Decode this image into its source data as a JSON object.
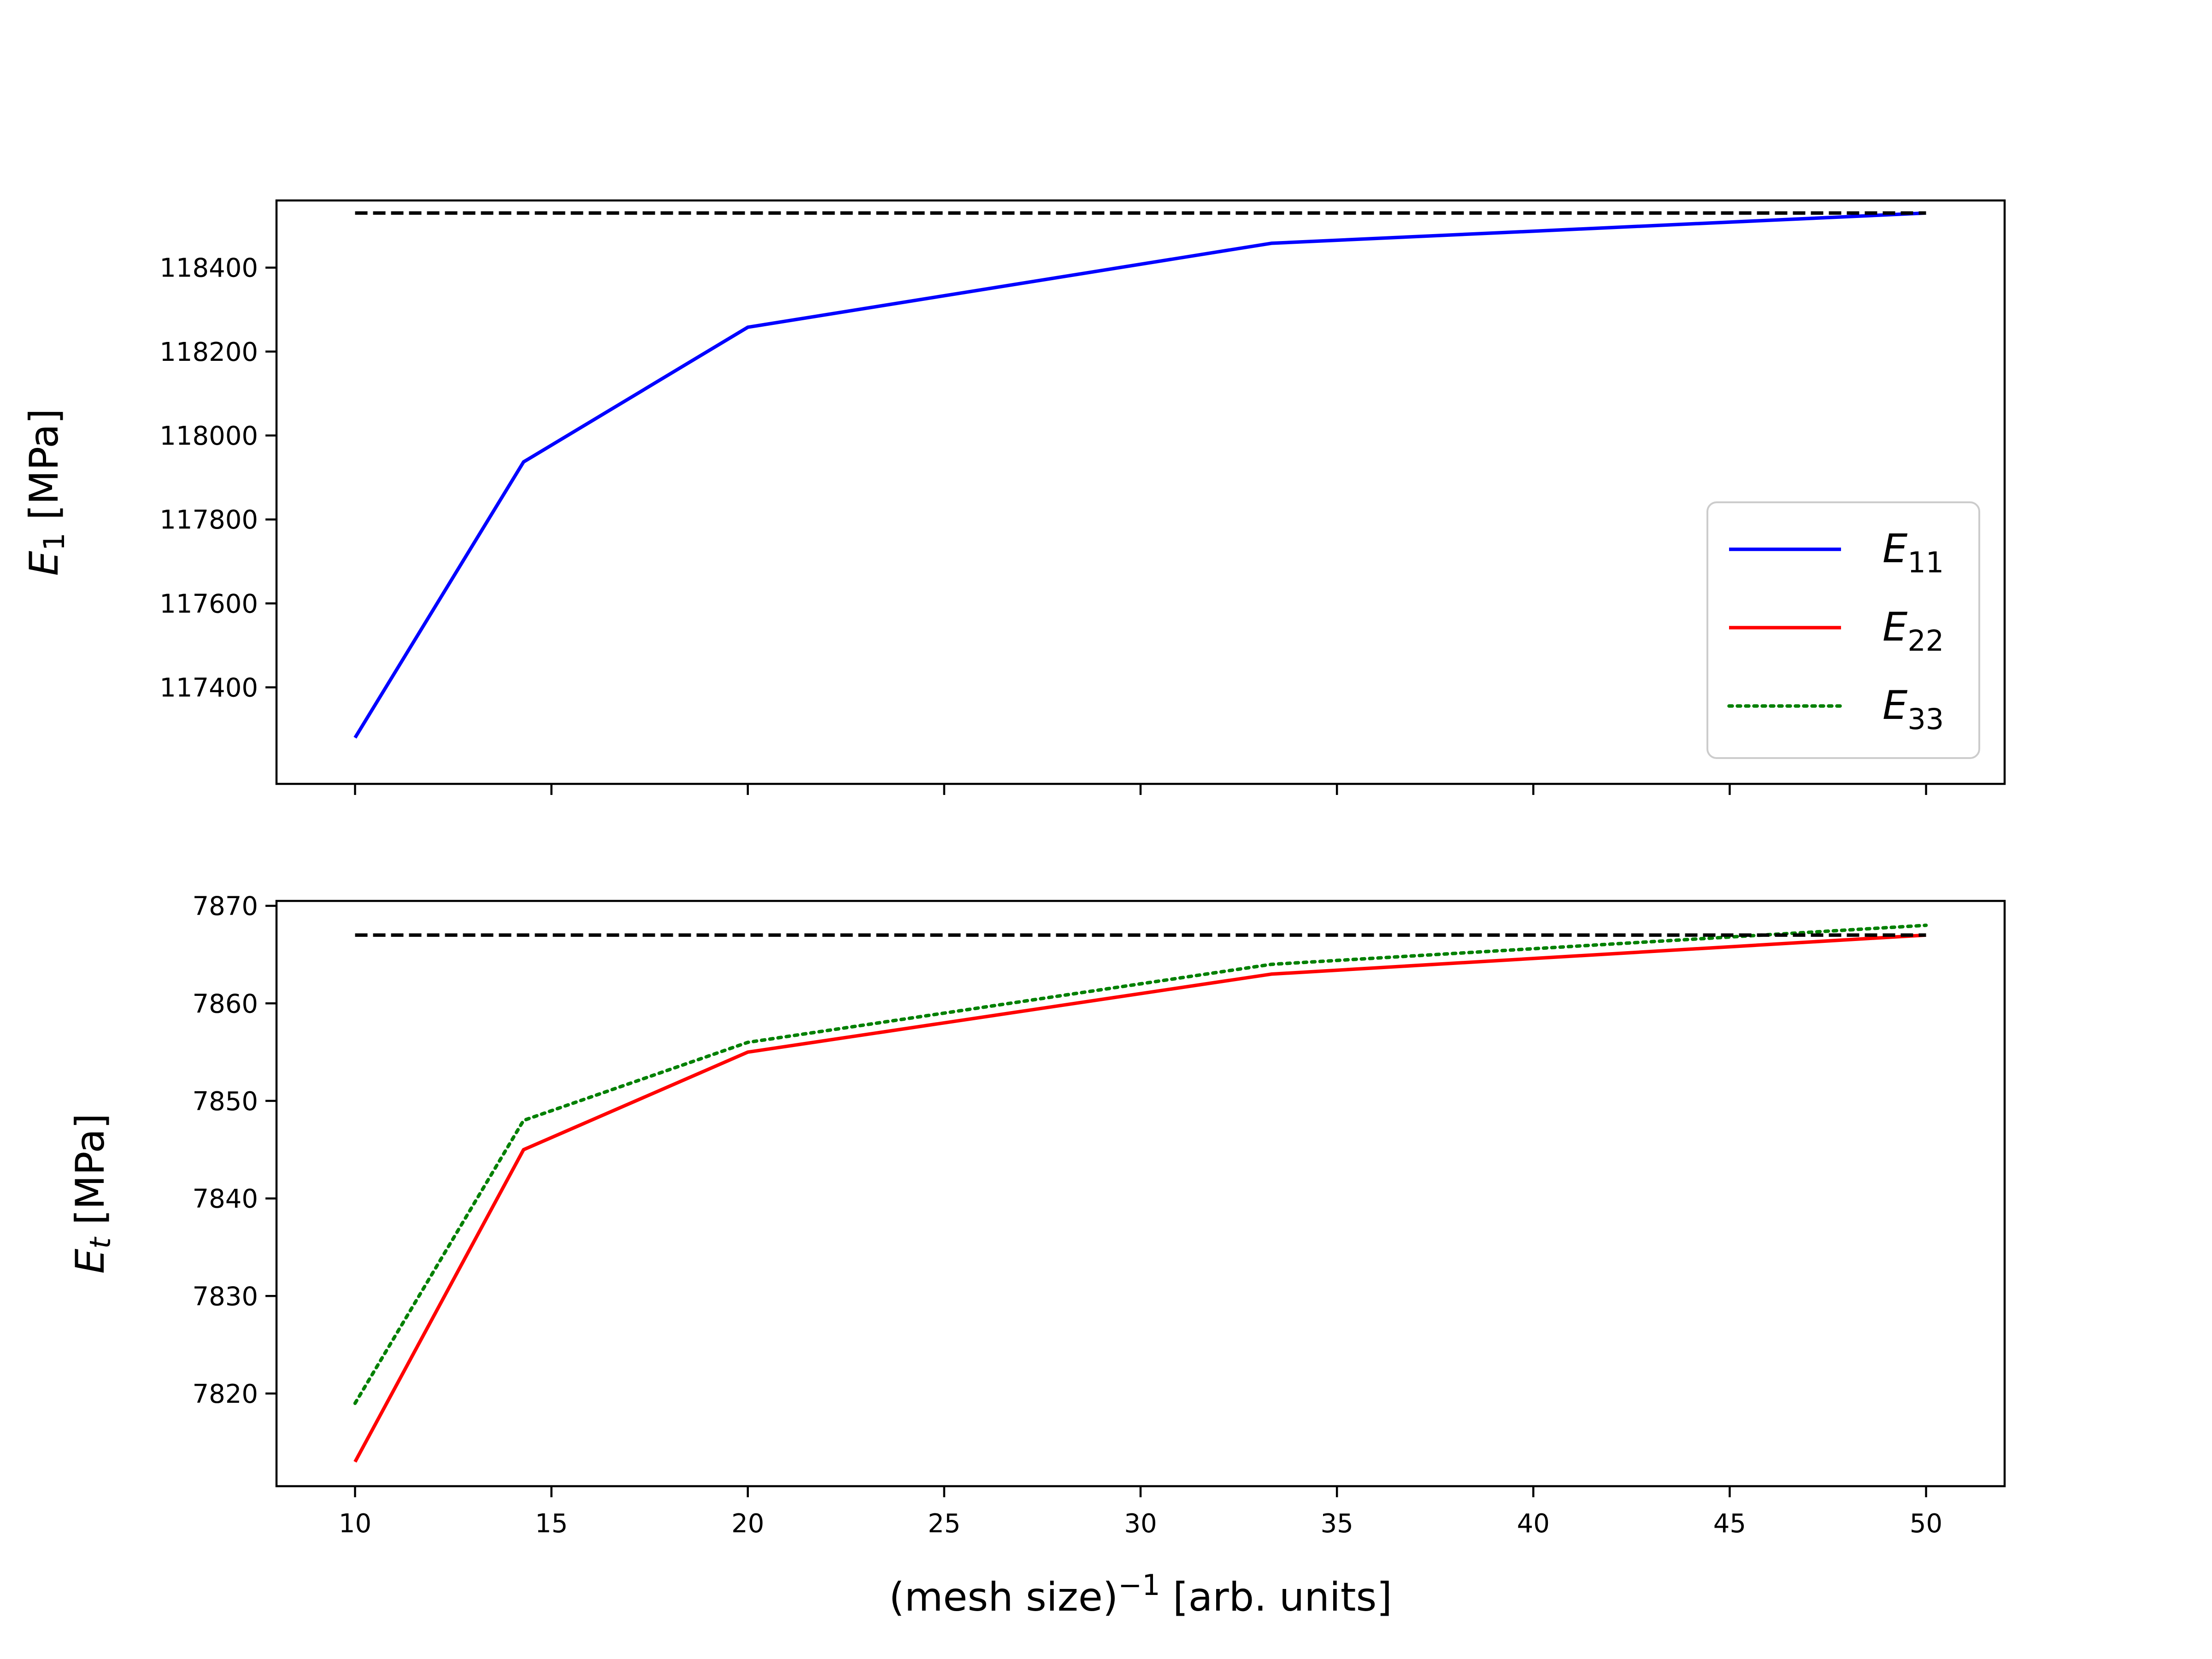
{
  "chart_data": [
    {
      "type": "line",
      "ylabel": {
        "base": "E",
        "sub": "1",
        "unit": " [MPa]"
      },
      "xlim": [
        8,
        52
      ],
      "ylim": [
        117170,
        118560
      ],
      "xticks": [
        10,
        15,
        20,
        25,
        30,
        35,
        40,
        45,
        50
      ],
      "show_xtick_labels": false,
      "yticks": [
        117400,
        117600,
        117800,
        118000,
        118200,
        118400
      ],
      "ytick_labels": [
        "117400",
        "117600",
        "117800",
        "118000",
        "118200",
        "118400"
      ],
      "series": [
        {
          "name": "E_11",
          "color": "#0000ff",
          "style": "solid",
          "x": [
            10,
            14.29,
            20,
            33.33,
            50
          ],
          "y": [
            117280,
            117937,
            118258,
            118458,
            118530
          ]
        },
        {
          "name": "",
          "color": "#000000",
          "style": "dashed",
          "x": [
            10,
            50
          ],
          "y": [
            118530,
            118530
          ]
        }
      ],
      "legend": {
        "position": "lower-right",
        "entries": [
          {
            "base": "E",
            "sub": "11",
            "color": "#0000ff",
            "style": "solid"
          },
          {
            "base": "E",
            "sub": "22",
            "color": "#ff0000",
            "style": "solid"
          },
          {
            "base": "E",
            "sub": "33",
            "color": "#008000",
            "style": "dotted"
          }
        ]
      }
    },
    {
      "type": "line",
      "ylabel": {
        "base": "E",
        "sub": "t",
        "unit": " [MPa]"
      },
      "xlabel": {
        "pre": "(mesh size)",
        "sup": "−1",
        "post": " [arb. units]"
      },
      "xlim": [
        8,
        52
      ],
      "ylim": [
        7810.5,
        7870.5
      ],
      "xticks": [
        10,
        15,
        20,
        25,
        30,
        35,
        40,
        45,
        50
      ],
      "xtick_labels": [
        "10",
        "15",
        "20",
        "25",
        "30",
        "35",
        "40",
        "45",
        "50"
      ],
      "show_xtick_labels": true,
      "yticks": [
        7820,
        7830,
        7840,
        7850,
        7860,
        7870
      ],
      "ytick_labels": [
        "7820",
        "7830",
        "7840",
        "7850",
        "7860",
        "7870"
      ],
      "series": [
        {
          "name": "E_22",
          "color": "#ff0000",
          "style": "solid",
          "x": [
            10,
            14.29,
            20,
            33.33,
            50
          ],
          "y": [
            7813,
            7845,
            7855,
            7863,
            7867
          ]
        },
        {
          "name": "E_33",
          "color": "#008000",
          "style": "dotted",
          "x": [
            10,
            14.29,
            20,
            33.33,
            50
          ],
          "y": [
            7819,
            7848,
            7856,
            7864,
            7868
          ]
        },
        {
          "name": "",
          "color": "#000000",
          "style": "dashed",
          "x": [
            10,
            50
          ],
          "y": [
            7867,
            7867
          ]
        }
      ]
    }
  ]
}
